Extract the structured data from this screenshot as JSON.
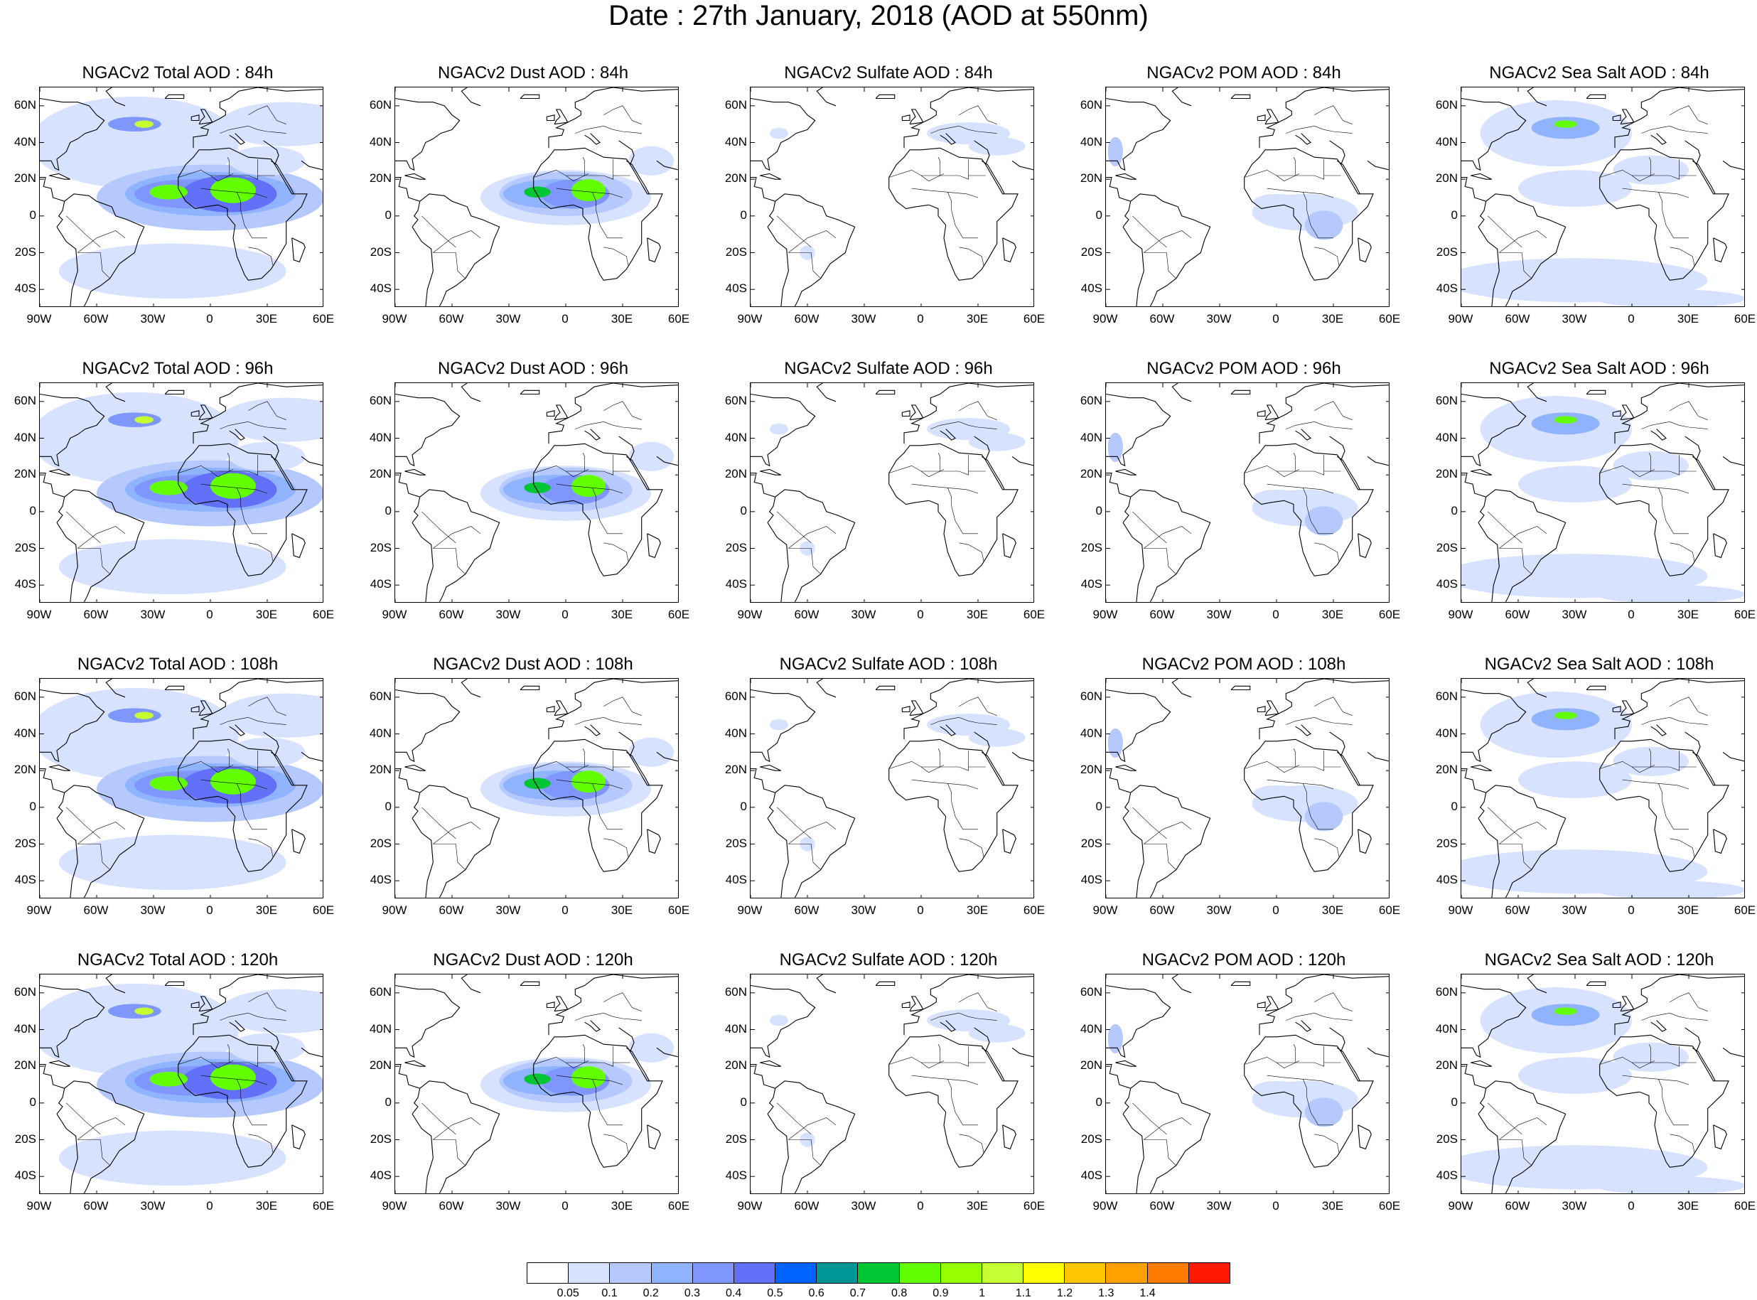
{
  "title": "Date : 27th January, 2018 (AOD at 550nm)",
  "lat_ticks": [
    "60N",
    "40N",
    "20N",
    "0",
    "20S",
    "40S"
  ],
  "lat_values": [
    60,
    40,
    20,
    0,
    -20,
    -40
  ],
  "lon_ticks": [
    "90W",
    "60W",
    "30W",
    "0",
    "30E",
    "60E"
  ],
  "lon_values": [
    -90,
    -60,
    -30,
    0,
    30,
    60
  ],
  "map_extent": {
    "lon": [
      -90,
      60
    ],
    "lat": [
      -50,
      70
    ]
  },
  "colorbar": {
    "labels": [
      "0.05",
      "0.1",
      "0.2",
      "0.3",
      "0.4",
      "0.5",
      "0.6",
      "0.7",
      "0.8",
      "0.9",
      "1",
      "1.1",
      "1.2",
      "1.3",
      "1.4"
    ],
    "colors": [
      "#ffffff",
      "#d6e2ff",
      "#b5c9ff",
      "#8fb3ff",
      "#7f96ff",
      "#6370f8",
      "#0062ff",
      "#009696",
      "#00c633",
      "#63ff00",
      "#96ff00",
      "#c6ff33",
      "#ffff00",
      "#ffc600",
      "#ffa000",
      "#ff7c00",
      "#ff1900"
    ]
  },
  "panels": [
    {
      "title": "NGACv2 Total AOD : 84h",
      "type": "total"
    },
    {
      "title": "NGACv2 Dust AOD : 84h",
      "type": "dust"
    },
    {
      "title": "NGACv2 Sulfate AOD : 84h",
      "type": "sulfate"
    },
    {
      "title": "NGACv2 POM AOD : 84h",
      "type": "pom"
    },
    {
      "title": "NGACv2 Sea Salt AOD : 84h",
      "type": "seasalt"
    },
    {
      "title": "NGACv2 Total AOD : 96h",
      "type": "total"
    },
    {
      "title": "NGACv2 Dust AOD : 96h",
      "type": "dust"
    },
    {
      "title": "NGACv2 Sulfate AOD : 96h",
      "type": "sulfate"
    },
    {
      "title": "NGACv2 POM AOD : 96h",
      "type": "pom"
    },
    {
      "title": "NGACv2 Sea Salt AOD : 96h",
      "type": "seasalt"
    },
    {
      "title": "NGACv2 Total AOD : 108h",
      "type": "total"
    },
    {
      "title": "NGACv2 Dust AOD : 108h",
      "type": "dust"
    },
    {
      "title": "NGACv2 Sulfate AOD : 108h",
      "type": "sulfate"
    },
    {
      "title": "NGACv2 POM AOD : 108h",
      "type": "pom"
    },
    {
      "title": "NGACv2 Sea Salt AOD : 108h",
      "type": "seasalt"
    },
    {
      "title": "NGACv2 Total AOD : 120h",
      "type": "total"
    },
    {
      "title": "NGACv2 Dust AOD : 120h",
      "type": "dust"
    },
    {
      "title": "NGACv2 Sulfate AOD : 120h",
      "type": "sulfate"
    },
    {
      "title": "NGACv2 POM AOD : 120h",
      "type": "pom"
    },
    {
      "title": "NGACv2 Sea Salt  AOD : 120h",
      "type": "seasalt"
    }
  ]
}
